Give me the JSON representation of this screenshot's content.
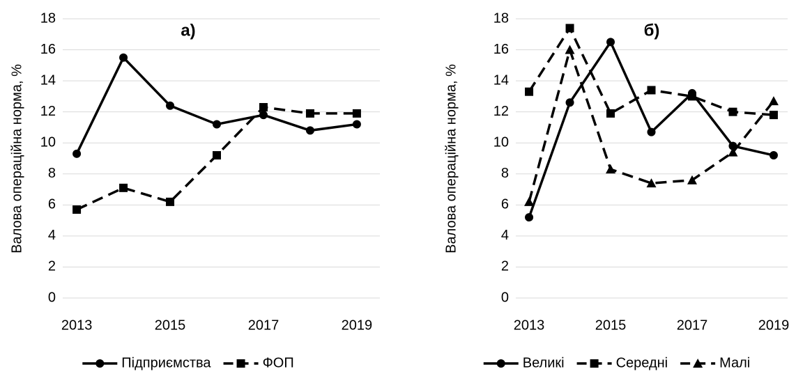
{
  "chart_data": [
    {
      "type": "line",
      "title": "а)",
      "ylabel": "Валова операційна норма, %",
      "x": [
        2013,
        2014,
        2015,
        2016,
        2017,
        2018,
        2019
      ],
      "xlim": [
        2012.7,
        2019.3
      ],
      "xticks": [
        2013,
        2015,
        2017,
        2019
      ],
      "ylim": [
        0,
        18
      ],
      "yticks": [
        0,
        2,
        4,
        6,
        8,
        10,
        12,
        14,
        16,
        18
      ],
      "grid": true,
      "legend": "bottom",
      "series": [
        {
          "name": "Підприємства",
          "color": "#000000",
          "dashed": false,
          "marker": "circle",
          "values": [
            9.3,
            15.5,
            12.4,
            11.2,
            11.8,
            10.8,
            11.2
          ]
        },
        {
          "name": "ФОП",
          "color": "#000000",
          "dashed": true,
          "marker": "square",
          "values": [
            5.7,
            7.1,
            6.2,
            9.2,
            12.3,
            11.9,
            11.9
          ]
        }
      ]
    },
    {
      "type": "line",
      "title": "б)",
      "ylabel": "Валова операційна норма, %",
      "x": [
        2013,
        2014,
        2015,
        2016,
        2017,
        2018,
        2019
      ],
      "xlim": [
        2012.7,
        2019.3
      ],
      "xticks": [
        2013,
        2015,
        2017,
        2019
      ],
      "ylim": [
        0,
        18
      ],
      "yticks": [
        0,
        2,
        4,
        6,
        8,
        10,
        12,
        14,
        16,
        18
      ],
      "grid": true,
      "legend": "bottom",
      "series": [
        {
          "name": "Великі",
          "color": "#000000",
          "dashed": false,
          "marker": "circle",
          "values": [
            5.2,
            12.6,
            16.5,
            10.7,
            13.2,
            9.8,
            9.2
          ]
        },
        {
          "name": "Середні",
          "color": "#000000",
          "dashed": true,
          "marker": "square",
          "values": [
            13.3,
            17.4,
            11.9,
            13.4,
            13.0,
            12.0,
            11.8
          ]
        },
        {
          "name": "Малі",
          "color": "#000000",
          "dashed": true,
          "marker": "triangle",
          "values": [
            6.2,
            16.0,
            8.3,
            7.4,
            7.6,
            9.4,
            12.7
          ]
        }
      ]
    }
  ]
}
